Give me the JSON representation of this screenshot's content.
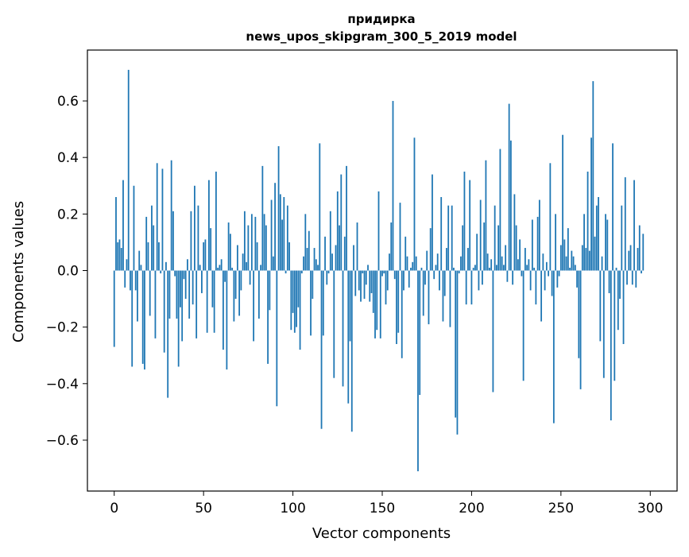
{
  "chart_data": {
    "type": "bar",
    "title_line1": "придирка",
    "title_line2": "news_upos_skipgram_300_5_2019 model",
    "xlabel": "Vector components",
    "ylabel": "Components values",
    "xlim": [
      -15,
      315
    ],
    "ylim": [
      -0.78,
      0.78
    ],
    "xticks": [
      0,
      50,
      100,
      150,
      200,
      250,
      300
    ],
    "xtick_labels": [
      "0",
      "50",
      "100",
      "150",
      "200",
      "250",
      "300"
    ],
    "yticks": [
      -0.6,
      -0.4,
      -0.2,
      0.0,
      0.2,
      0.4,
      0.6
    ],
    "ytick_labels": [
      "−0.6",
      "−0.4",
      "−0.2",
      "0.0",
      "0.2",
      "0.4",
      "0.6"
    ],
    "bar_color": "#1f77b4",
    "values": [
      -0.27,
      0.26,
      0.1,
      0.11,
      0.08,
      0.32,
      -0.06,
      0.04,
      0.71,
      -0.07,
      -0.34,
      0.3,
      -0.07,
      -0.18,
      0.07,
      0.02,
      -0.33,
      -0.35,
      0.19,
      0.1,
      -0.16,
      0.23,
      0.16,
      -0.24,
      0.38,
      0.1,
      -0.01,
      0.36,
      -0.29,
      0.03,
      -0.45,
      -0.17,
      0.39,
      0.21,
      -0.02,
      -0.17,
      -0.34,
      -0.13,
      -0.25,
      -0.03,
      -0.1,
      0.04,
      -0.17,
      0.21,
      -0.12,
      0.3,
      -0.24,
      0.23,
      0.02,
      -0.08,
      0.1,
      0.11,
      -0.22,
      0.32,
      0.15,
      -0.13,
      -0.22,
      0.35,
      0.01,
      0.02,
      0.04,
      -0.28,
      -0.04,
      -0.35,
      0.17,
      0.13,
      0.01,
      -0.18,
      -0.1,
      0.09,
      -0.16,
      -0.07,
      0.06,
      0.21,
      0.03,
      0.16,
      -0.05,
      0.2,
      -0.25,
      0.19,
      0.1,
      -0.17,
      0.02,
      0.37,
      0.2,
      0.16,
      -0.33,
      -0.14,
      0.25,
      0.05,
      0.31,
      -0.48,
      0.44,
      0.27,
      0.18,
      0.26,
      -0.01,
      0.23,
      0.1,
      -0.21,
      -0.15,
      -0.22,
      -0.2,
      -0.13,
      -0.28,
      -0.01,
      0.05,
      0.2,
      0.08,
      0.14,
      -0.23,
      -0.1,
      0.08,
      0.04,
      0.02,
      0.45,
      -0.56,
      -0.23,
      0.12,
      -0.05,
      -0.01,
      0.21,
      0.06,
      -0.38,
      0.09,
      0.28,
      0.16,
      0.34,
      -0.41,
      0.12,
      0.37,
      -0.47,
      -0.25,
      -0.57,
      0.09,
      -0.09,
      0.17,
      -0.07,
      -0.11,
      -0.01,
      -0.1,
      -0.05,
      0.02,
      -0.11,
      -0.08,
      -0.15,
      -0.24,
      -0.21,
      0.28,
      -0.24,
      -0.02,
      -0.01,
      -0.12,
      -0.07,
      0.06,
      0.17,
      0.6,
      -0.03,
      -0.26,
      -0.22,
      0.24,
      -0.31,
      -0.07,
      0.12,
      0.05,
      -0.06,
      0.01,
      0.03,
      0.47,
      0.05,
      -0.71,
      -0.44,
      0.01,
      -0.16,
      -0.05,
      0.07,
      -0.19,
      0.15,
      0.34,
      -0.03,
      0.02,
      0.06,
      -0.07,
      0.26,
      -0.18,
      -0.09,
      0.08,
      0.23,
      -0.2,
      0.23,
      0.01,
      -0.52,
      -0.58,
      -0.01,
      0.05,
      0.16,
      0.35,
      -0.12,
      0.08,
      0.32,
      -0.12,
      0.01,
      0.02,
      0.13,
      -0.07,
      0.25,
      -0.05,
      0.17,
      0.39,
      0.06,
      0.01,
      0.04,
      -0.43,
      0.23,
      0.02,
      0.16,
      0.43,
      0.05,
      0.02,
      0.09,
      -0.04,
      0.59,
      0.46,
      -0.05,
      0.27,
      0.16,
      0.04,
      0.11,
      -0.02,
      -0.39,
      0.08,
      0.02,
      0.04,
      -0.07,
      0.18,
      0.01,
      -0.12,
      0.19,
      0.25,
      -0.18,
      0.06,
      -0.07,
      0.03,
      -0.02,
      0.38,
      -0.09,
      -0.54,
      0.2,
      -0.06,
      -0.02,
      0.09,
      0.48,
      0.11,
      0.05,
      0.15,
      0.01,
      0.07,
      0.05,
      0.02,
      -0.06,
      -0.31,
      -0.42,
      0.09,
      0.2,
      0.08,
      0.35,
      0.07,
      0.47,
      0.67,
      0.12,
      0.23,
      0.26,
      -0.25,
      0.05,
      -0.38,
      0.2,
      0.18,
      -0.08,
      -0.53,
      0.45,
      -0.39,
      0.01,
      -0.21,
      -0.1,
      0.23,
      -0.26,
      0.33,
      -0.05,
      0.07,
      0.09,
      -0.05,
      0.32,
      -0.06,
      0.08,
      0.16,
      -0.01,
      0.13
    ]
  }
}
